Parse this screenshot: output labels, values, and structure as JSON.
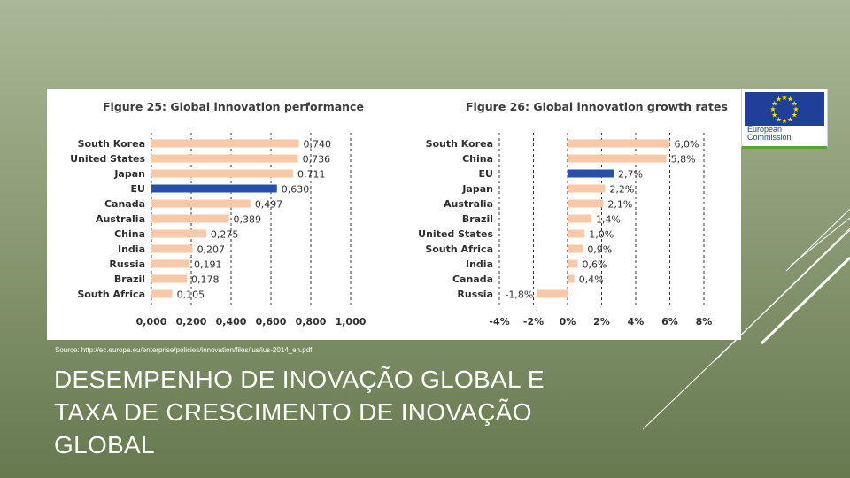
{
  "slide": {
    "source": "Source: http://ec.europa.eu/enterprise/policies/innovation/files/ius/ius-2014_en.pdf",
    "title_lines": [
      "DESEMPENHO DE INOVAÇÃO GLOBAL E",
      "TAXA DE CRESCIMENTO DE INOVAÇÃO",
      "GLOBAL"
    ]
  },
  "logo": {
    "line1": "European",
    "line2": "Commission",
    "flag_color": "#1f3f99",
    "star_color": "#ffdd00"
  },
  "colors": {
    "bar": "#f7c9a8",
    "highlight": "#2a4ea8",
    "grid": "#333333"
  },
  "chart_data": [
    {
      "type": "bar",
      "orientation": "horizontal",
      "title": "Figure 25: Global innovation performance",
      "categories": [
        "South Korea",
        "United States",
        "Japan",
        "EU",
        "Canada",
        "Australia",
        "China",
        "India",
        "Russia",
        "Brazil",
        "South Africa"
      ],
      "values": [
        0.74,
        0.736,
        0.711,
        0.63,
        0.497,
        0.389,
        0.275,
        0.207,
        0.191,
        0.178,
        0.105
      ],
      "value_labels": [
        "0,740",
        "0,736",
        "0,711",
        "0,630",
        "0,497",
        "0,389",
        "0,275",
        "0,207",
        "0,191",
        "0,178",
        "0,105"
      ],
      "highlight": "EU",
      "xlim": [
        0,
        1
      ],
      "xticks": [
        0,
        0.2,
        0.4,
        0.6,
        0.8,
        1.0
      ],
      "xtick_labels": [
        "0,000",
        "0,200",
        "0,400",
        "0,600",
        "0,800",
        "1,000"
      ],
      "grid": "vertical dashed"
    },
    {
      "type": "bar",
      "orientation": "horizontal",
      "title": "Figure 26: Global innovation growth rates",
      "categories": [
        "South Korea",
        "China",
        "EU",
        "Japan",
        "Australia",
        "Brazil",
        "United States",
        "South Africa",
        "India",
        "Canada",
        "Russia"
      ],
      "values": [
        6.0,
        5.8,
        2.7,
        2.2,
        2.1,
        1.4,
        1.0,
        0.9,
        0.6,
        0.4,
        -1.8
      ],
      "value_labels": [
        "6,0%",
        "5,8%",
        "2,7%",
        "2,2%",
        "2,1%",
        "1,4%",
        "1,0%",
        "0,9%",
        "0,6%",
        "0,4%",
        "-1,8%"
      ],
      "highlight": "EU",
      "xlim": [
        -4,
        8
      ],
      "xticks": [
        -4,
        -2,
        0,
        2,
        4,
        6,
        8
      ],
      "xtick_labels": [
        "-4%",
        "-2%",
        "0%",
        "2%",
        "4%",
        "6%",
        "8%"
      ],
      "grid": "vertical dashed"
    }
  ]
}
